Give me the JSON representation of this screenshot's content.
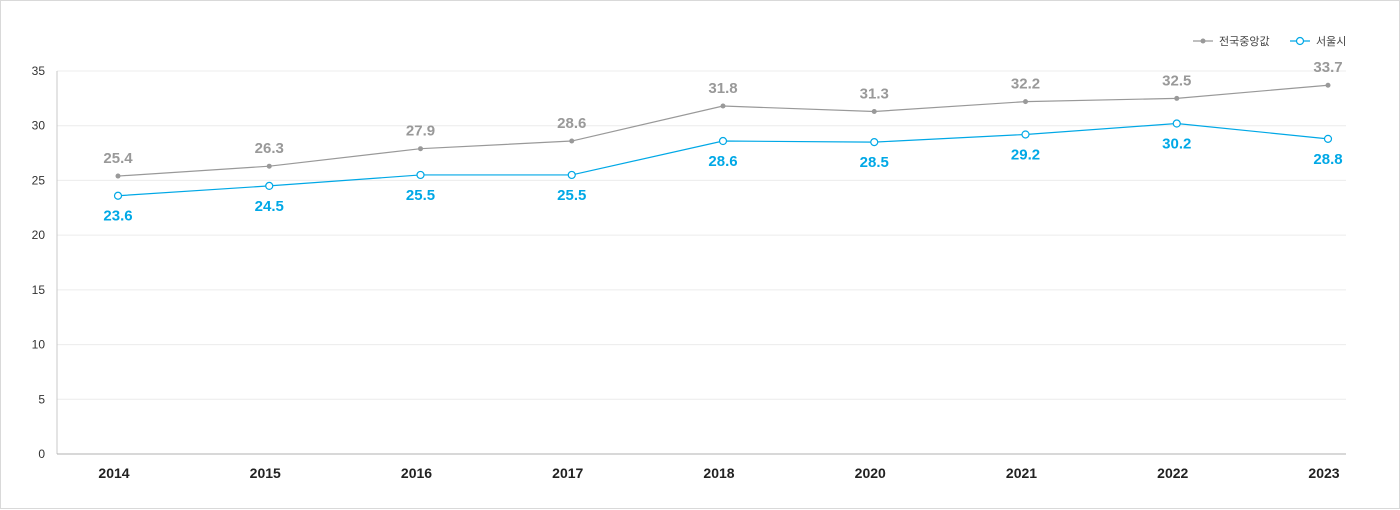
{
  "chart_data": {
    "type": "line",
    "categories": [
      "2014",
      "2015",
      "2016",
      "2017",
      "2018",
      "2020",
      "2021",
      "2022",
      "2023"
    ],
    "series": [
      {
        "name": "전국중앙값",
        "color": "#999999",
        "values": [
          25.4,
          26.3,
          27.9,
          28.6,
          31.8,
          31.3,
          32.2,
          32.5,
          33.7
        ],
        "labels": [
          "25.4",
          "26.3",
          "27.9",
          "28.6",
          "31.8",
          "31.3",
          "32.2",
          "32.5",
          "33.7"
        ]
      },
      {
        "name": "서울시",
        "color": "#00a8e6",
        "values": [
          23.6,
          24.5,
          25.5,
          25.5,
          28.6,
          28.5,
          29.2,
          30.2,
          28.8
        ],
        "labels": [
          "23.6",
          "24.5",
          "25.5",
          "25.5",
          "28.6",
          "28.5",
          "29.2",
          "30.2",
          "28.8"
        ]
      }
    ],
    "y_ticks": [
      "0",
      "5",
      "10",
      "15",
      "20",
      "25",
      "30",
      "35"
    ],
    "ylim": [
      0,
      35
    ],
    "grid": true,
    "legend_position": "top-right"
  }
}
